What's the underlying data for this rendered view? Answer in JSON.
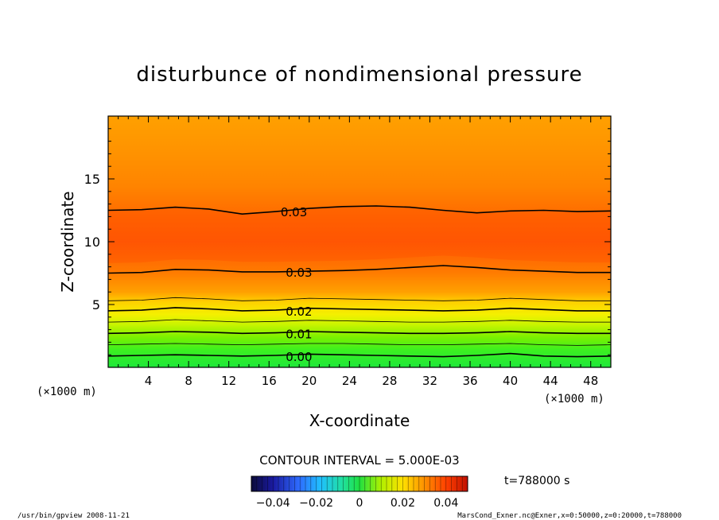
{
  "chart_data": {
    "type": "contour",
    "title": "disturbunce of nondimensional pressure",
    "xlabel": "X-coordinate",
    "ylabel": "Z-coordinate",
    "x_unit": "(×1000 m)",
    "x_unit_right": "(×1000 m)",
    "xlim": [
      0,
      50
    ],
    "ylim": [
      0,
      20
    ],
    "x_ticks": [
      4,
      8,
      12,
      16,
      20,
      24,
      28,
      32,
      36,
      40,
      44,
      48
    ],
    "y_ticks": [
      5,
      10,
      15
    ],
    "contour_interval_text": "CONTOUR INTERVAL = 5.000E-03",
    "contour_labels": [
      {
        "text": "0.03",
        "x": 17,
        "z": 12.4
      },
      {
        "text": "0.03",
        "x": 17.5,
        "z": 7.6
      },
      {
        "text": "0.02",
        "x": 17.5,
        "z": 4.5
      },
      {
        "text": "0.01",
        "x": 17.5,
        "z": 2.7
      },
      {
        "text": "0.00",
        "x": 17.5,
        "z": 0.9
      }
    ],
    "contour_lines": [
      {
        "level": 0.0,
        "major": true,
        "z": [
          0.9,
          0.95,
          1.0,
          0.95,
          0.9,
          0.95,
          1.05,
          1.0,
          0.95,
          0.9,
          0.85,
          0.95,
          1.1,
          0.9,
          0.85,
          0.9
        ]
      },
      {
        "level": 0.005,
        "major": false,
        "z": [
          1.8,
          1.85,
          1.9,
          1.85,
          1.8,
          1.85,
          1.9,
          1.9,
          1.85,
          1.8,
          1.8,
          1.85,
          1.9,
          1.8,
          1.75,
          1.8
        ]
      },
      {
        "level": 0.01,
        "major": true,
        "z": [
          2.7,
          2.75,
          2.85,
          2.8,
          2.7,
          2.75,
          2.85,
          2.8,
          2.75,
          2.7,
          2.7,
          2.75,
          2.85,
          2.75,
          2.7,
          2.7
        ]
      },
      {
        "level": 0.015,
        "major": false,
        "z": [
          3.6,
          3.65,
          3.8,
          3.7,
          3.6,
          3.65,
          3.75,
          3.7,
          3.65,
          3.6,
          3.6,
          3.65,
          3.75,
          3.65,
          3.6,
          3.6
        ]
      },
      {
        "level": 0.02,
        "major": true,
        "z": [
          4.5,
          4.55,
          4.75,
          4.65,
          4.5,
          4.55,
          4.7,
          4.65,
          4.6,
          4.55,
          4.5,
          4.55,
          4.7,
          4.6,
          4.5,
          4.5
        ]
      },
      {
        "level": 0.025,
        "major": false,
        "z": [
          5.3,
          5.35,
          5.55,
          5.45,
          5.3,
          5.35,
          5.5,
          5.45,
          5.4,
          5.35,
          5.3,
          5.35,
          5.5,
          5.4,
          5.3,
          5.3
        ]
      },
      {
        "level": 0.03,
        "major": true,
        "z": [
          7.5,
          7.55,
          7.8,
          7.75,
          7.6,
          7.6,
          7.65,
          7.7,
          7.8,
          7.95,
          8.1,
          7.95,
          7.75,
          7.65,
          7.55,
          7.55
        ]
      },
      {
        "level": 0.03,
        "major": true,
        "z": [
          12.5,
          12.55,
          12.75,
          12.6,
          12.2,
          12.4,
          12.65,
          12.8,
          12.85,
          12.75,
          12.5,
          12.3,
          12.45,
          12.5,
          12.4,
          12.45
        ]
      }
    ],
    "colorbar": {
      "ticks": [
        "−0.04",
        "−0.02",
        "0",
        "0.02",
        "0.04"
      ],
      "range": [
        -0.05,
        0.05
      ]
    }
  },
  "annotations": {
    "time": "t=788000 s",
    "footer_left": "/usr/bin/gpview  2008-11-21",
    "footer_right": "MarsCond_Exner.nc@Exner,x=0:50000,z=0:20000,t=788000"
  },
  "colors": {
    "low": "#1a1aff",
    "zero": "#00e030",
    "mid": "#d8ff00",
    "high": "#ff6a00",
    "top": "#ff9800"
  }
}
